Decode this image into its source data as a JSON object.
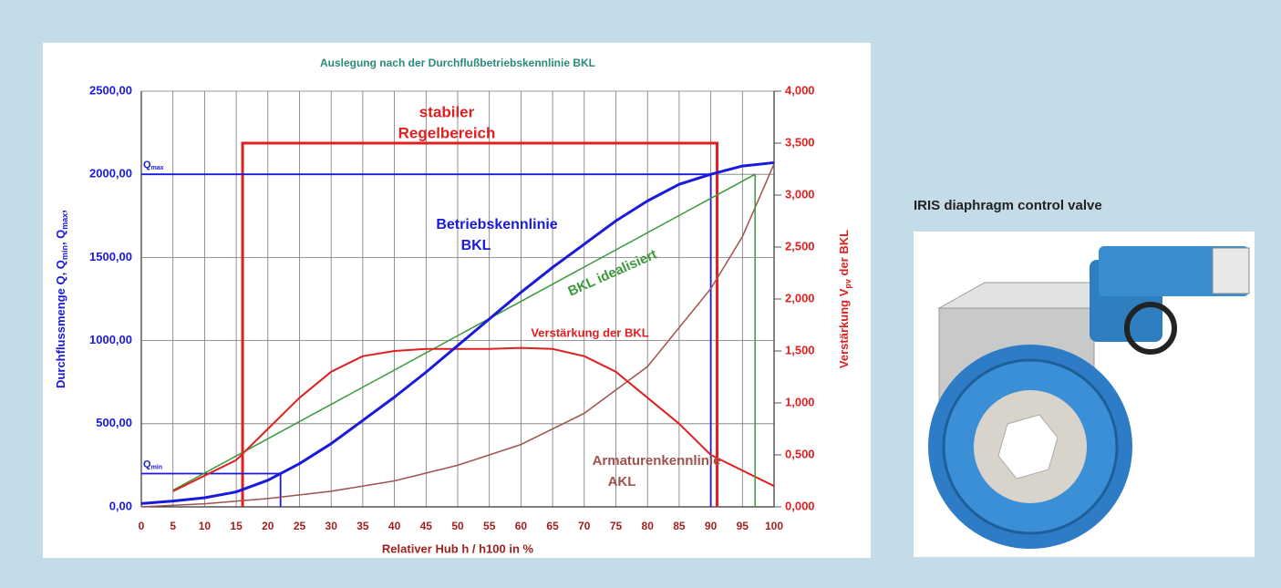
{
  "chart_data": {
    "type": "line",
    "title": "Auslegung nach der Durchflußbetriebskennlinie BKL",
    "xlabel": "Relativer Hub h / h100 in %",
    "ylabel_parts": [
      "Durchflussmenge Q, Q",
      "min",
      ", Q",
      "max",
      ","
    ],
    "y2label_parts": [
      "Verstärkung V",
      "pv",
      " der BKL"
    ],
    "caption": "IRIS diaphragm control valve",
    "xlim": [
      0,
      100
    ],
    "xticks": [
      0,
      5,
      10,
      15,
      20,
      25,
      30,
      35,
      40,
      45,
      50,
      55,
      60,
      65,
      70,
      75,
      80,
      85,
      90,
      95,
      100
    ],
    "ylim": [
      0,
      2500
    ],
    "yticks": [
      {
        "value": 0,
        "label": "0,00"
      },
      {
        "value": 500,
        "label": "500,00"
      },
      {
        "value": 1000,
        "label": "1000,00"
      },
      {
        "value": 1500,
        "label": "1500,00"
      },
      {
        "value": 2000,
        "label": "2000,00"
      },
      {
        "value": 2500,
        "label": "2500,00"
      }
    ],
    "y2lim": [
      0,
      4
    ],
    "y2ticks": [
      {
        "value": 0,
        "label": "0,000"
      },
      {
        "value": 0.5,
        "label": "0,500"
      },
      {
        "value": 1,
        "label": "1,000"
      },
      {
        "value": 1.5,
        "label": "1,500"
      },
      {
        "value": 2,
        "label": "2,000"
      },
      {
        "value": 2.5,
        "label": "2,500"
      },
      {
        "value": 3,
        "label": "3,000"
      },
      {
        "value": 3.5,
        "label": "3,500"
      },
      {
        "value": 4,
        "label": "4,000"
      }
    ],
    "grid": true,
    "series": [
      {
        "color": "#a0524d",
        "axis": "y2",
        "width": 1.5,
        "x": [
          0,
          10,
          20,
          30,
          40,
          50,
          60,
          70,
          80,
          90,
          95,
          100
        ],
        "values": [
          0,
          0.03,
          0.08,
          0.15,
          0.25,
          0.4,
          0.6,
          0.9,
          1.35,
          2.1,
          2.6,
          3.3
        ]
      },
      {
        "color": "#3a9a3a",
        "width": 1.5,
        "x": [
          5,
          97
        ],
        "values": [
          100,
          2000
        ]
      },
      {
        "color": "#e02020",
        "axis": "y2",
        "width": 2,
        "x": [
          5,
          10,
          15,
          20,
          25,
          30,
          35,
          40,
          45,
          50,
          55,
          60,
          65,
          70,
          75,
          80,
          85,
          90,
          95,
          100
        ],
        "values": [
          0.15,
          0.3,
          0.45,
          0.75,
          1.05,
          1.3,
          1.45,
          1.5,
          1.52,
          1.52,
          1.52,
          1.53,
          1.52,
          1.45,
          1.3,
          1.05,
          0.8,
          0.5,
          0.35,
          0.2
        ]
      },
      {
        "color": "#1a1adc",
        "width": 3,
        "x": [
          0,
          5,
          10,
          15,
          20,
          25,
          30,
          35,
          40,
          45,
          50,
          55,
          60,
          65,
          70,
          75,
          80,
          85,
          90,
          95,
          100
        ],
        "values": [
          20,
          35,
          55,
          90,
          160,
          260,
          380,
          520,
          660,
          810,
          970,
          1130,
          1290,
          1440,
          1580,
          1720,
          1840,
          1940,
          2000,
          2050,
          2070
        ]
      }
    ],
    "qmax": {
      "label": "Q",
      "sub": "max",
      "value": 2000,
      "x": 90
    },
    "qmin": {
      "label": "Q",
      "sub": "min",
      "value": 200,
      "x": 22
    },
    "regelbereich": {
      "x": [
        16,
        91
      ],
      "y2": 3.5
    },
    "annotations": [
      "stabiler",
      "Regelbereich",
      "Betriebskennlinie",
      "BKL",
      "BKL idealisiert",
      "Verstärkung der BKL",
      "Armaturenkennlinie",
      "AKL"
    ]
  }
}
